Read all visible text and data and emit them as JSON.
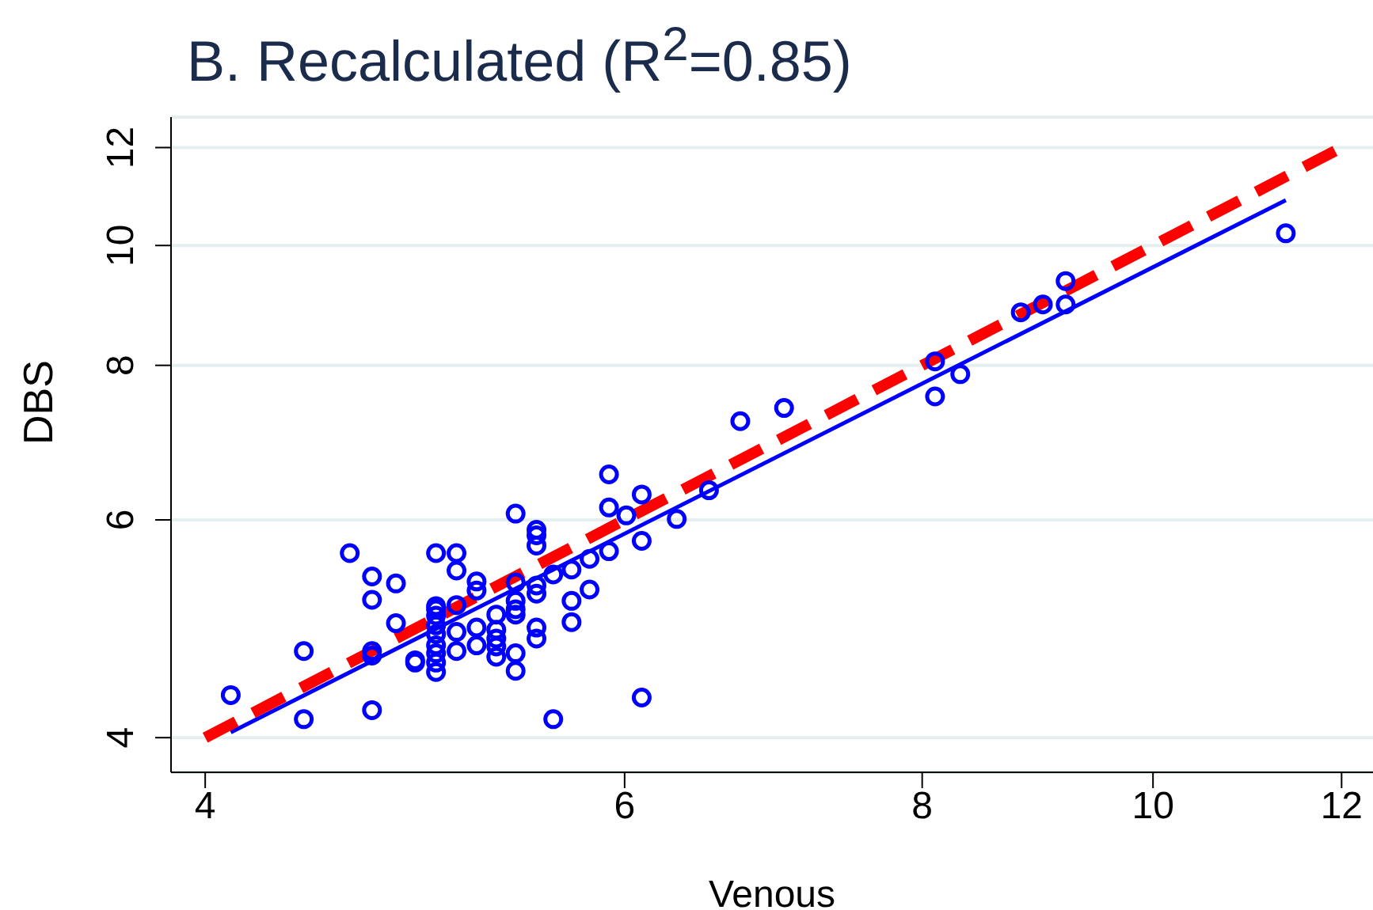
{
  "chart_data": {
    "type": "scatter",
    "title": "B. Recalculated (R$^{2}$=0.85)",
    "xlabel": "Venous",
    "ylabel": "DBS",
    "log": "xy",
    "grid": "y",
    "xlim": [
      3.87,
      12.37
    ],
    "ylim": [
      3.75,
      12.7
    ],
    "xticks": [
      4,
      6,
      8,
      10,
      12
    ],
    "yticks": [
      4,
      6,
      8,
      10,
      12
    ],
    "series": [
      {
        "marker": "circle",
        "color": "#0000ff",
        "x": [
          4.1,
          4.4,
          4.4,
          4.6,
          4.7,
          4.7,
          4.7,
          4.7,
          4.7,
          4.81,
          4.81,
          4.9,
          4.9,
          5.0,
          5.0,
          5.0,
          5.0,
          5.0,
          5.0,
          5.0,
          5.0,
          5.0,
          5.0,
          5.1,
          5.1,
          5.1,
          5.1,
          5.1,
          5.2,
          5.2,
          5.2,
          5.2,
          5.3,
          5.3,
          5.3,
          5.3,
          5.3,
          5.4,
          5.4,
          5.4,
          5.4,
          5.4,
          5.4,
          5.4,
          5.51,
          5.51,
          5.51,
          5.51,
          5.51,
          5.51,
          5.51,
          5.6,
          5.6,
          5.7,
          5.7,
          5.7,
          5.8,
          5.8,
          5.91,
          5.91,
          5.91,
          6.01,
          6.1,
          6.1,
          6.1,
          6.31,
          6.51,
          6.71,
          7.0,
          8.1,
          8.1,
          8.3,
          8.8,
          8.99,
          9.19,
          9.19,
          11.37
        ],
        "values": [
          4.33,
          4.7,
          4.14,
          5.64,
          5.4,
          5.17,
          4.7,
          4.66,
          4.21,
          5.33,
          4.95,
          4.62,
          4.6,
          5.64,
          5.11,
          5.08,
          5.02,
          4.93,
          4.85,
          4.75,
          4.68,
          4.6,
          4.52,
          5.64,
          5.46,
          5.12,
          4.87,
          4.7,
          5.35,
          5.26,
          4.91,
          4.75,
          5.03,
          4.89,
          4.81,
          4.74,
          4.65,
          6.07,
          5.34,
          5.16,
          5.08,
          5.03,
          4.68,
          4.53,
          5.89,
          5.83,
          5.72,
          5.31,
          5.23,
          4.91,
          4.81,
          5.42,
          4.14,
          5.47,
          5.16,
          4.96,
          5.58,
          5.27,
          6.53,
          6.14,
          5.66,
          6.05,
          6.29,
          5.77,
          4.31,
          6.01,
          6.34,
          7.21,
          7.39,
          8.06,
          7.55,
          7.87,
          8.83,
          8.96,
          9.36,
          8.96,
          10.23
        ]
      },
      {
        "type": "line",
        "color": "#0000ff",
        "line_style": "solid",
        "marker": "none",
        "x": [
          4.1,
          11.37
        ],
        "values": [
          4.04,
          10.88
        ]
      },
      {
        "type": "line",
        "color": "#ff0000",
        "line_style": "dashed",
        "marker": "none",
        "x": [
          4,
          12
        ],
        "values": [
          4,
          12
        ]
      }
    ]
  }
}
